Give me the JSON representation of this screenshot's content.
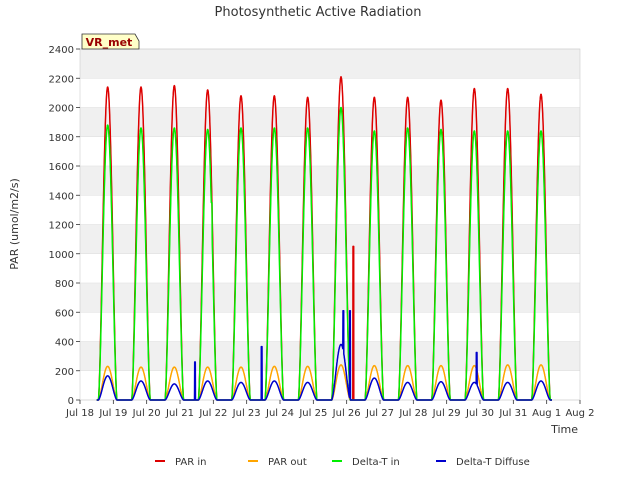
{
  "chart_data": {
    "type": "line",
    "title": "Photosynthetic Active Radiation",
    "xlabel": "Time",
    "ylabel": "PAR (umol/m2/s)",
    "station_label": "VR_met",
    "xlim": [
      18,
      33
    ],
    "ylim": [
      0,
      2400
    ],
    "yticks": [
      0,
      200,
      400,
      600,
      800,
      1000,
      1200,
      1400,
      1600,
      1800,
      2000,
      2200,
      2400
    ],
    "xticks": [
      {
        "pos": 18,
        "label": "Jul 18"
      },
      {
        "pos": 19,
        "label": "Jul 19"
      },
      {
        "pos": 20,
        "label": "Jul 20"
      },
      {
        "pos": 21,
        "label": "Jul 21"
      },
      {
        "pos": 22,
        "label": "Jul 22"
      },
      {
        "pos": 23,
        "label": "Jul 23"
      },
      {
        "pos": 24,
        "label": "Jul 24"
      },
      {
        "pos": 25,
        "label": "Jul 25"
      },
      {
        "pos": 26,
        "label": "Jul 26"
      },
      {
        "pos": 27,
        "label": "Jul 27"
      },
      {
        "pos": 28,
        "label": "Jul 28"
      },
      {
        "pos": 29,
        "label": "Jul 29"
      },
      {
        "pos": 30,
        "label": "Jul 30"
      },
      {
        "pos": 31,
        "label": "Jul 31"
      },
      {
        "pos": 32,
        "label": "Aug 1"
      },
      {
        "pos": 33,
        "label": "Aug 2"
      }
    ],
    "day_starts": [
      18.55,
      19.55,
      20.55,
      21.55,
      22.55,
      23.55,
      24.55,
      25.55,
      26.55,
      27.55,
      28.55,
      29.55,
      30.55,
      31.55
    ],
    "day_length": 0.56,
    "series": [
      {
        "name": "PAR in",
        "color": "#dd0000",
        "daily_peaks": [
          2140,
          2140,
          2150,
          2120,
          2080,
          2080,
          2070,
          2210,
          2070,
          2070,
          2050,
          2130,
          2130,
          2090
        ]
      },
      {
        "name": "PAR out",
        "color": "#ffa500",
        "daily_peaks": [
          230,
          225,
          225,
          225,
          225,
          230,
          230,
          240,
          235,
          235,
          235,
          235,
          240,
          240
        ]
      },
      {
        "name": "Delta-T in",
        "color": "#00ee00",
        "daily_peaks": [
          1880,
          1860,
          1860,
          1850,
          1860,
          1860,
          1860,
          2000,
          1840,
          1860,
          1850,
          1840,
          1840,
          1840
        ]
      },
      {
        "name": "Delta-T Diffuse",
        "color": "#0000cc",
        "daily_peaks": [
          165,
          130,
          110,
          130,
          120,
          130,
          120,
          380,
          150,
          120,
          125,
          120,
          120,
          130
        ]
      }
    ],
    "spikes": [
      {
        "series": "Delta-T Diffuse",
        "x": 21.45,
        "value": 260
      },
      {
        "series": "Delta-T Diffuse",
        "x": 23.45,
        "value": 365
      },
      {
        "series": "Delta-T Diffuse",
        "x": 25.9,
        "value": 610
      },
      {
        "series": "Delta-T Diffuse",
        "x": 26.1,
        "value": 610
      },
      {
        "series": "Delta-T Diffuse",
        "x": 29.9,
        "value": 325
      },
      {
        "series": "Delta-T in",
        "x": 21.95,
        "value": 1350
      },
      {
        "series": "PAR in",
        "x": 26.2,
        "value": 1050
      }
    ],
    "legend_position": "bottom",
    "grid": true
  }
}
